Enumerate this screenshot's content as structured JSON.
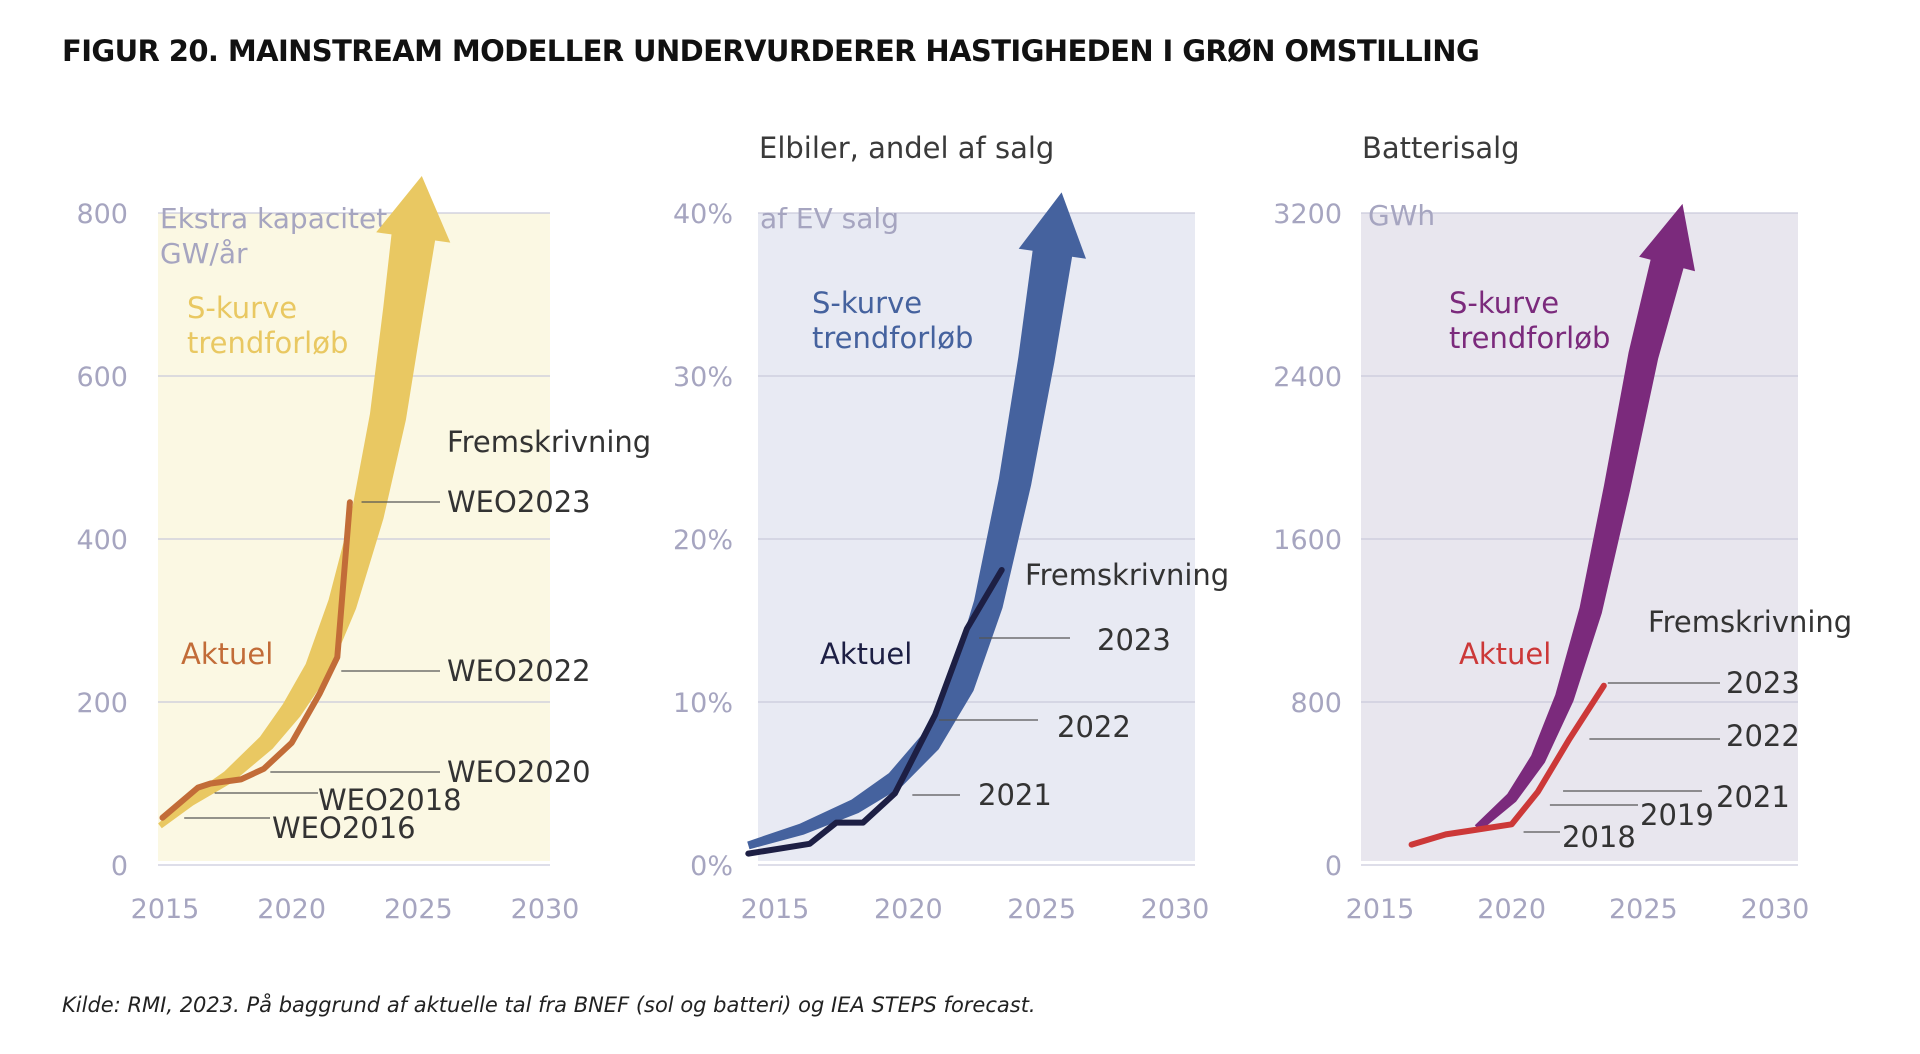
{
  "title": "FIGUR 20. MAINSTREAM MODELLER UNDERVURDERER HASTIGHEDEN I GRØN OMSTILLING",
  "source": "Kilde: RMI, 2023. På baggrund af aktuelle tal fra BNEF (sol og batteri) og IEA STEPS forecast.",
  "chart_data": [
    {
      "type": "line",
      "title": "",
      "unit_label": [
        "Ekstra kapacitet,",
        "GW/år"
      ],
      "x_ticks": [
        "2015",
        "2020",
        "2025",
        "2030"
      ],
      "y_ticks": [
        "0",
        "200",
        "400",
        "600",
        "800"
      ],
      "xlim": [
        2015,
        2030
      ],
      "ylim": [
        0,
        800
      ],
      "grid": true,
      "colors": {
        "band": "#e9c862",
        "actual": "#c26c38",
        "bg": "#fbf8e3"
      },
      "scurve_label": [
        "S-kurve",
        "trendforløb"
      ],
      "actual_label": "Aktuel",
      "projection_label": "Fremskrivning",
      "series": [
        {
          "name": "S-kurve trendforløb",
          "x": [
            2014.8,
            2016,
            2017.5,
            2019,
            2020,
            2021,
            2022,
            2023,
            2023.8,
            2024.4,
            2024.8
          ],
          "values": [
            48,
            78,
            108,
            150,
            190,
            240,
            320,
            430,
            550,
            680,
            770
          ]
        },
        {
          "name": "Aktuel",
          "x": [
            2014.9,
            2016.3,
            2016.8,
            2018,
            2018.9,
            2020,
            2021.1,
            2021.8,
            2022.3
          ],
          "values": [
            58,
            95,
            100,
            105,
            118,
            150,
            210,
            255,
            445
          ]
        }
      ],
      "projections": [
        {
          "label": "WEO2023",
          "x": 2022.6,
          "value": 445
        },
        {
          "label": "WEO2022",
          "x": 2021.8,
          "value": 235
        },
        {
          "label": "WEO2020",
          "x": 2019,
          "value": 105
        },
        {
          "label": "WEO2018",
          "x": 2016.8,
          "value": 88
        },
        {
          "label": "WEO2016",
          "x": 2015.6,
          "value": 55
        }
      ]
    },
    {
      "type": "line",
      "title": "Elbiler, andel af salg",
      "unit_label": [
        "af EV salg"
      ],
      "x_ticks": [
        "2015",
        "2020",
        "2025",
        "2030"
      ],
      "y_ticks": [
        "0%",
        "10%",
        "20%",
        "30%",
        "40%"
      ],
      "xlim": [
        2015,
        2030
      ],
      "ylim": [
        0,
        40
      ],
      "grid": true,
      "colors": {
        "band": "#45629e",
        "actual": "#1d1f44",
        "bg": "#e8eaf3"
      },
      "scurve_label": [
        "S-kurve",
        "trendforløb"
      ],
      "actual_label": "Aktuel",
      "projection_label": "Fremskrivning",
      "series": [
        {
          "name": "S-kurve trendforløb",
          "x": [
            2014,
            2016,
            2018,
            2019.5,
            2020.8,
            2022,
            2023,
            2024,
            2024.8,
            2025.4
          ],
          "values": [
            1.2,
            2.2,
            3.6,
            5.2,
            7.5,
            11,
            16,
            23.5,
            31,
            37.5
          ]
        },
        {
          "name": "Aktuel",
          "x": [
            2014,
            2016.3,
            2017.3,
            2018.3,
            2019.5,
            2021,
            2022.2,
            2023.5
          ],
          "values": [
            0.7,
            1.3,
            2.6,
            2.6,
            4.4,
            9.2,
            14.5,
            18.1
          ]
        }
      ],
      "projections": [
        {
          "label": "2023",
          "x": 2022.5,
          "value": 13.9
        },
        {
          "label": "2022",
          "x": 2021,
          "value": 8.6
        },
        {
          "label": "2021",
          "x": 2020,
          "value": 4.4
        }
      ]
    },
    {
      "type": "line",
      "title": "Batterisalg",
      "unit_label": [
        "GWh"
      ],
      "x_ticks": [
        "2015",
        "2020",
        "2025",
        "2030"
      ],
      "y_ticks": [
        "0",
        "800",
        "1600",
        "2400",
        "3200"
      ],
      "xlim": [
        2015,
        2030
      ],
      "ylim": [
        0,
        3200
      ],
      "grid": true,
      "colors": {
        "band": "#7b2a7c",
        "actual": "#cc3838",
        "bg": "#e8e6ee"
      },
      "scurve_label": [
        "S-kurve",
        "trendforløb"
      ],
      "actual_label": "Aktuel",
      "projection_label": "Fremskrivning",
      "series": [
        {
          "name": "S-kurve trendforløb",
          "x": [
            2018.7,
            2020,
            2021,
            2022,
            2023,
            2024,
            2025,
            2025.9
          ],
          "values": [
            180,
            330,
            520,
            820,
            1250,
            1850,
            2500,
            2950
          ]
        },
        {
          "name": "Aktuel",
          "x": [
            2016.2,
            2017.5,
            2018.5,
            2020,
            2021,
            2022.2,
            2023.5
          ],
          "values": [
            100,
            150,
            170,
            200,
            360,
            620,
            880
          ]
        }
      ],
      "projections": [
        {
          "label": "2023",
          "x": 2023.5,
          "value": 880
        },
        {
          "label": "2022",
          "x": 2022.8,
          "value": 610
        },
        {
          "label": "2021",
          "x": 2021.8,
          "value": 355
        },
        {
          "label": "2019",
          "x": 2021.3,
          "value": 250
        },
        {
          "label": "2018",
          "x": 2020.3,
          "value": 150
        }
      ]
    }
  ]
}
